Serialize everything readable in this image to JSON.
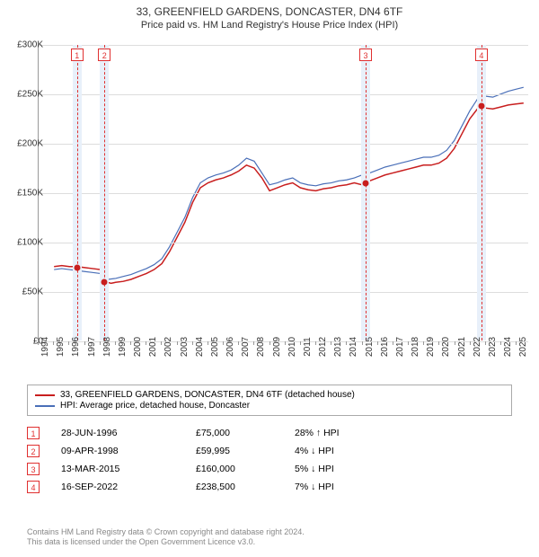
{
  "title": "33, GREENFIELD GARDENS, DONCASTER, DN4 6TF",
  "subtitle": "Price paid vs. HM Land Registry's House Price Index (HPI)",
  "chart": {
    "type": "line",
    "background_color": "#ffffff",
    "grid_color": "#dddddd",
    "axis_color": "#999999",
    "marker_band_color": "#e8f0fa",
    "marker_line_color": "#e03030",
    "marker_dot_color": "#c81e1e",
    "xlim": [
      1994,
      2025.8
    ],
    "ylim": [
      0,
      300000
    ],
    "ytick_step": 50000,
    "yticks": [
      {
        "v": 0,
        "label": "£0"
      },
      {
        "v": 50000,
        "label": "£50K"
      },
      {
        "v": 100000,
        "label": "£100K"
      },
      {
        "v": 150000,
        "label": "£150K"
      },
      {
        "v": 200000,
        "label": "£200K"
      },
      {
        "v": 250000,
        "label": "£250K"
      },
      {
        "v": 300000,
        "label": "£300K"
      }
    ],
    "xticks": [
      1994,
      1995,
      1996,
      1997,
      1998,
      1999,
      2000,
      2001,
      2002,
      2003,
      2004,
      2005,
      2006,
      2007,
      2008,
      2009,
      2010,
      2011,
      2012,
      2013,
      2014,
      2015,
      2016,
      2017,
      2018,
      2019,
      2020,
      2021,
      2022,
      2023,
      2024,
      2025
    ],
    "series": [
      {
        "name": "property",
        "label": "33, GREENFIELD GARDENS, DONCASTER, DN4 6TF (detached house)",
        "color": "#c81e1e",
        "line_width": 1.5,
        "data": [
          [
            1995.0,
            75000
          ],
          [
            1995.5,
            76000
          ],
          [
            1996.0,
            75000
          ],
          [
            1996.49,
            75000
          ],
          [
            1996.5,
            75000
          ],
          [
            1997.0,
            74000
          ],
          [
            1997.5,
            73000
          ],
          [
            1998.0,
            72000
          ],
          [
            1998.26,
            59995
          ],
          [
            1998.27,
            59995
          ],
          [
            1998.7,
            58000
          ],
          [
            1999.0,
            59000
          ],
          [
            1999.5,
            60000
          ],
          [
            2000.0,
            62000
          ],
          [
            2000.5,
            65000
          ],
          [
            2001.0,
            68000
          ],
          [
            2001.5,
            72000
          ],
          [
            2002.0,
            78000
          ],
          [
            2002.5,
            90000
          ],
          [
            2003.0,
            105000
          ],
          [
            2003.5,
            120000
          ],
          [
            2004.0,
            140000
          ],
          [
            2004.5,
            155000
          ],
          [
            2005.0,
            160000
          ],
          [
            2005.5,
            163000
          ],
          [
            2006.0,
            165000
          ],
          [
            2006.5,
            168000
          ],
          [
            2007.0,
            172000
          ],
          [
            2007.5,
            178000
          ],
          [
            2008.0,
            175000
          ],
          [
            2008.5,
            165000
          ],
          [
            2009.0,
            152000
          ],
          [
            2009.5,
            155000
          ],
          [
            2010.0,
            158000
          ],
          [
            2010.5,
            160000
          ],
          [
            2011.0,
            155000
          ],
          [
            2011.5,
            153000
          ],
          [
            2012.0,
            152000
          ],
          [
            2012.5,
            154000
          ],
          [
            2013.0,
            155000
          ],
          [
            2013.5,
            157000
          ],
          [
            2014.0,
            158000
          ],
          [
            2014.5,
            160000
          ],
          [
            2015.0,
            158000
          ],
          [
            2015.2,
            160000
          ],
          [
            2015.5,
            162000
          ],
          [
            2016.0,
            165000
          ],
          [
            2016.5,
            168000
          ],
          [
            2017.0,
            170000
          ],
          [
            2017.5,
            172000
          ],
          [
            2018.0,
            174000
          ],
          [
            2018.5,
            176000
          ],
          [
            2019.0,
            178000
          ],
          [
            2019.5,
            178000
          ],
          [
            2020.0,
            180000
          ],
          [
            2020.5,
            185000
          ],
          [
            2021.0,
            195000
          ],
          [
            2021.5,
            210000
          ],
          [
            2022.0,
            225000
          ],
          [
            2022.5,
            235000
          ],
          [
            2022.71,
            238500
          ],
          [
            2023.0,
            236000
          ],
          [
            2023.5,
            235000
          ],
          [
            2024.0,
            237000
          ],
          [
            2024.5,
            239000
          ],
          [
            2025.0,
            240000
          ],
          [
            2025.5,
            241000
          ]
        ]
      },
      {
        "name": "hpi",
        "label": "HPI: Average price, detached house, Doncaster",
        "color": "#4a6fb8",
        "line_width": 1.2,
        "data": [
          [
            1995.0,
            72000
          ],
          [
            1995.5,
            73000
          ],
          [
            1996.0,
            72000
          ],
          [
            1996.5,
            71000
          ],
          [
            1997.0,
            70000
          ],
          [
            1997.5,
            69000
          ],
          [
            1998.0,
            68000
          ],
          [
            1998.5,
            62000
          ],
          [
            1999.0,
            63000
          ],
          [
            1999.5,
            65000
          ],
          [
            2000.0,
            67000
          ],
          [
            2000.5,
            70000
          ],
          [
            2001.0,
            73000
          ],
          [
            2001.5,
            77000
          ],
          [
            2002.0,
            83000
          ],
          [
            2002.5,
            95000
          ],
          [
            2003.0,
            110000
          ],
          [
            2003.5,
            125000
          ],
          [
            2004.0,
            145000
          ],
          [
            2004.5,
            160000
          ],
          [
            2005.0,
            165000
          ],
          [
            2005.5,
            168000
          ],
          [
            2006.0,
            170000
          ],
          [
            2006.5,
            173000
          ],
          [
            2007.0,
            178000
          ],
          [
            2007.5,
            185000
          ],
          [
            2008.0,
            182000
          ],
          [
            2008.5,
            170000
          ],
          [
            2009.0,
            158000
          ],
          [
            2009.5,
            160000
          ],
          [
            2010.0,
            163000
          ],
          [
            2010.5,
            165000
          ],
          [
            2011.0,
            160000
          ],
          [
            2011.5,
            158000
          ],
          [
            2012.0,
            157000
          ],
          [
            2012.5,
            159000
          ],
          [
            2013.0,
            160000
          ],
          [
            2013.5,
            162000
          ],
          [
            2014.0,
            163000
          ],
          [
            2014.5,
            165000
          ],
          [
            2015.0,
            168000
          ],
          [
            2015.5,
            170000
          ],
          [
            2016.0,
            173000
          ],
          [
            2016.5,
            176000
          ],
          [
            2017.0,
            178000
          ],
          [
            2017.5,
            180000
          ],
          [
            2018.0,
            182000
          ],
          [
            2018.5,
            184000
          ],
          [
            2019.0,
            186000
          ],
          [
            2019.5,
            186000
          ],
          [
            2020.0,
            188000
          ],
          [
            2020.5,
            193000
          ],
          [
            2021.0,
            203000
          ],
          [
            2021.5,
            218000
          ],
          [
            2022.0,
            233000
          ],
          [
            2022.5,
            245000
          ],
          [
            2023.0,
            248000
          ],
          [
            2023.5,
            247000
          ],
          [
            2024.0,
            250000
          ],
          [
            2024.5,
            253000
          ],
          [
            2025.0,
            255000
          ],
          [
            2025.5,
            257000
          ]
        ]
      }
    ],
    "markers": [
      {
        "n": 1,
        "x": 1996.49,
        "y": 75000
      },
      {
        "n": 2,
        "x": 1998.27,
        "y": 59995
      },
      {
        "n": 3,
        "x": 2015.2,
        "y": 160000
      },
      {
        "n": 4,
        "x": 2022.71,
        "y": 238500
      }
    ]
  },
  "legend": {
    "series1_label": "33, GREENFIELD GARDENS, DONCASTER, DN4 6TF (detached house)",
    "series2_label": "HPI: Average price, detached house, Doncaster"
  },
  "sales": [
    {
      "n": "1",
      "date": "28-JUN-1996",
      "price": "£75,000",
      "diff": "28% ↑ HPI",
      "arrow": "↑"
    },
    {
      "n": "2",
      "date": "09-APR-1998",
      "price": "£59,995",
      "diff": "4% ↓ HPI",
      "arrow": "↓"
    },
    {
      "n": "3",
      "date": "13-MAR-2015",
      "price": "£160,000",
      "diff": "5% ↓ HPI",
      "arrow": "↓"
    },
    {
      "n": "4",
      "date": "16-SEP-2022",
      "price": "£238,500",
      "diff": "7% ↓ HPI",
      "arrow": "↓"
    }
  ],
  "footer": {
    "line1": "Contains HM Land Registry data © Crown copyright and database right 2024.",
    "line2": "This data is licensed under the Open Government Licence v3.0."
  }
}
